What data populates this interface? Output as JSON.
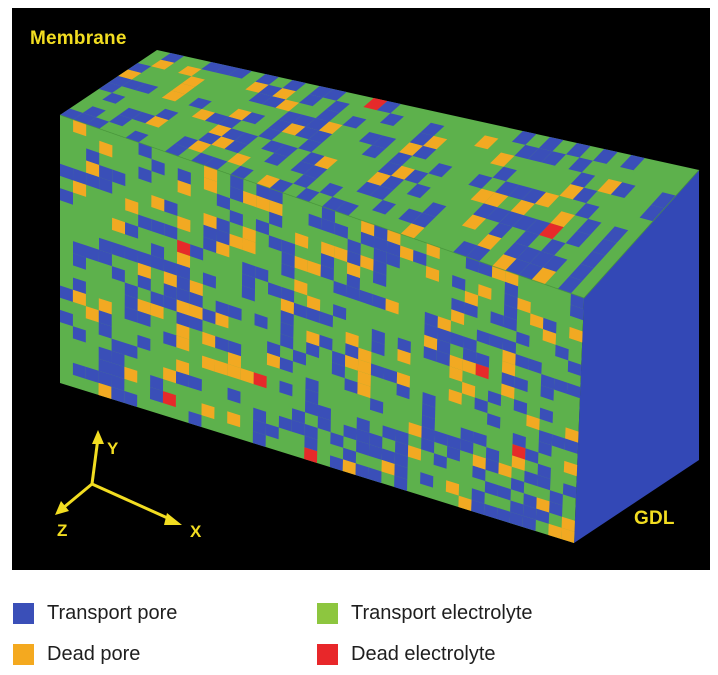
{
  "labels": {
    "membrane": "Membrane",
    "gdl": "GDL"
  },
  "axes": {
    "x": "X",
    "y": "Y",
    "z": "Z",
    "color": "#f2dd21"
  },
  "colors": {
    "background": "#000000",
    "transport_pore": "#3a4fb8",
    "transport_electrolyte": "#5db14c",
    "dead_pore": "#f2a922",
    "dead_electrolyte": "#e62a2a",
    "side_face": "#3348b6"
  },
  "legend": [
    {
      "label": "Transport pore",
      "color": "#3a4fb8"
    },
    {
      "label": "Transport electrolyte",
      "color": "#8dc63f"
    },
    {
      "label": "Dead pore",
      "color": "#f4a91f"
    },
    {
      "label": "Dead electrolyte",
      "color": "#e8272a"
    }
  ]
}
